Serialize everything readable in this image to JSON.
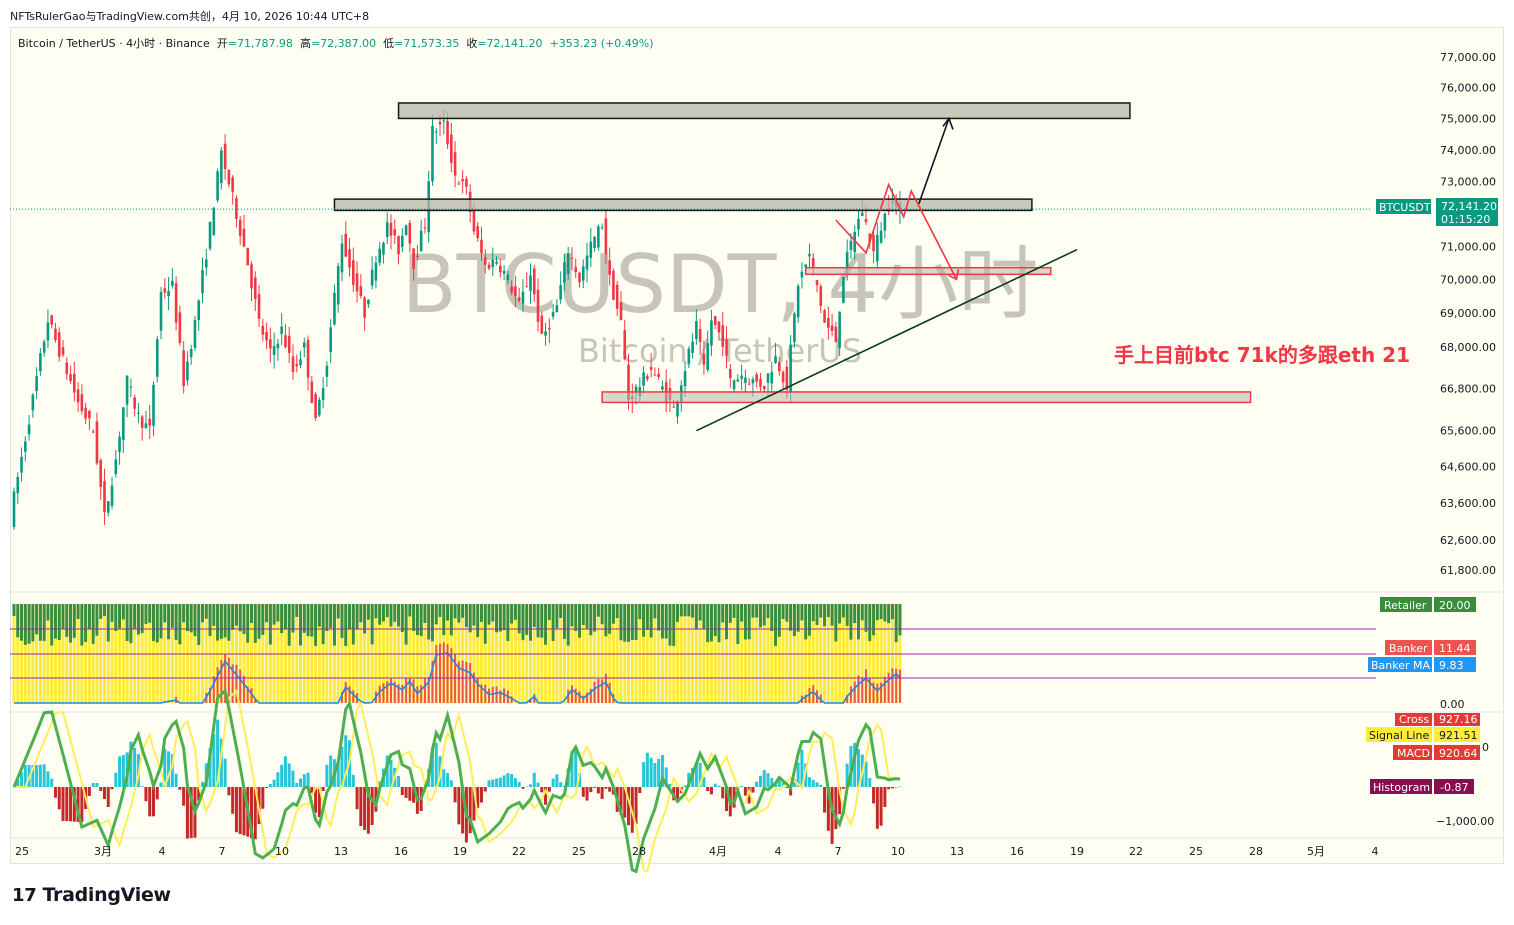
{
  "meta": {
    "publish_line": "NFTsRulerGao与TradingView.com共创，4月 10, 2026 10:44 UTC+8"
  },
  "legend": {
    "symbol": "Bitcoin / TetherUS · 4小时 · Binance",
    "open_label": "开",
    "open": "=71,787.98",
    "high_label": "高",
    "high": "=72,387.00",
    "low_label": "低",
    "low": "=71,573.35",
    "close_label": "收",
    "close": "=72,141.20",
    "change": "+353.23 (+0.49%)"
  },
  "watermark": {
    "title": "BTCUSDT, 4小时",
    "subtitle": "Bitcoin / TetherUS"
  },
  "annotation": "手上目前btc 71k的多跟eth 21",
  "colors": {
    "up": "#089981",
    "down": "#f23645",
    "accent": "#f23645",
    "grid": "#fffef3",
    "zone": "#c8c8b8"
  },
  "price_axis": {
    "ticks": [
      "77,000.00",
      "76,000.00",
      "75,000.00",
      "74,000.00",
      "73,000.00",
      "71,000.00",
      "70,000.00",
      "69,000.00",
      "68,000.00",
      "66,800.00",
      "65,600.00",
      "64,600.00",
      "63,600.00",
      "62,600.00",
      "61,800.00"
    ],
    "tick_values": [
      77000,
      76000,
      75000,
      74000,
      73000,
      71000,
      70000,
      69000,
      68000,
      66800,
      65600,
      64600,
      63600,
      62600,
      61800
    ],
    "last_symbol": "BTCUSDT",
    "last_price": "72,141.20",
    "countdown": "01:15:20"
  },
  "time_axis": {
    "labels": [
      "25",
      "3月",
      "4",
      "7",
      "10",
      "13",
      "16",
      "19",
      "22",
      "25",
      "28",
      "4月",
      "4",
      "7",
      "10",
      "13",
      "16",
      "19",
      "22",
      "25",
      "28",
      "5月",
      "4"
    ]
  },
  "indicator1": {
    "retailer_label": "Retailer",
    "retailer_value": "20.00",
    "banker_label": "Banker",
    "banker_value": "11.44",
    "banker_ma_label": "Banker MA",
    "banker_ma_value": "9.83",
    "zero": "0.00"
  },
  "indicator2": {
    "cross_label": "Cross",
    "cross_value": "927.16",
    "signal_label": "Signal Line",
    "signal_value": "921.51",
    "macd_label": "MACD",
    "macd_value": "920.64",
    "hist_label": "Histogram",
    "hist_value": "-0.87",
    "neg_tick": "−1,000.00",
    "partial_tick": "0"
  },
  "chart_data": {
    "type": "candlestick",
    "title": "BTCUSDT, 4小时",
    "ylim": [
      61400,
      77400
    ],
    "y_scale": "log",
    "price_path": [
      [
        0,
        63200
      ],
      [
        6,
        66500
      ],
      [
        10,
        68800
      ],
      [
        14,
        67600
      ],
      [
        18,
        66400
      ],
      [
        22,
        65600
      ],
      [
        25,
        63200
      ],
      [
        28,
        64800
      ],
      [
        31,
        67000
      ],
      [
        34,
        66000
      ],
      [
        37,
        65600
      ],
      [
        40,
        69600
      ],
      [
        43,
        69800
      ],
      [
        46,
        67000
      ],
      [
        49,
        68700
      ],
      [
        52,
        70800
      ],
      [
        56,
        73900
      ],
      [
        60,
        72000
      ],
      [
        63,
        70500
      ],
      [
        66,
        68700
      ],
      [
        69,
        67800
      ],
      [
        72,
        68500
      ],
      [
        75,
        67300
      ],
      [
        78,
        68000
      ],
      [
        81,
        65800
      ],
      [
        84,
        67600
      ],
      [
        86,
        69500
      ],
      [
        88,
        71200
      ],
      [
        91,
        70000
      ],
      [
        94,
        69000
      ],
      [
        97,
        70700
      ],
      [
        100,
        71600
      ],
      [
        103,
        70900
      ],
      [
        105,
        71800
      ],
      [
        107,
        70500
      ],
      [
        110,
        71700
      ],
      [
        112,
        74600
      ],
      [
        115,
        74800
      ],
      [
        118,
        73200
      ],
      [
        121,
        72700
      ],
      [
        123,
        71500
      ],
      [
        126,
        70400
      ],
      [
        129,
        70600
      ],
      [
        132,
        70000
      ],
      [
        135,
        69200
      ],
      [
        138,
        70200
      ],
      [
        141,
        68200
      ],
      [
        145,
        69200
      ],
      [
        148,
        70900
      ],
      [
        151,
        70000
      ],
      [
        154,
        71000
      ],
      [
        157,
        71700
      ],
      [
        159,
        70000
      ],
      [
        162,
        68700
      ],
      [
        164,
        66500
      ],
      [
        167,
        66900
      ],
      [
        170,
        67400
      ],
      [
        173,
        66800
      ],
      [
        176,
        66200
      ],
      [
        179,
        67400
      ],
      [
        182,
        68600
      ],
      [
        184,
        67300
      ],
      [
        186,
        68800
      ],
      [
        189,
        68200
      ],
      [
        191,
        67000
      ],
      [
        194,
        67200
      ],
      [
        197,
        67000
      ],
      [
        200,
        66900
      ],
      [
        203,
        67700
      ],
      [
        206,
        66900
      ],
      [
        209,
        69900
      ],
      [
        212,
        70700
      ],
      [
        214,
        69800
      ],
      [
        216,
        68700
      ],
      [
        219,
        68200
      ],
      [
        221,
        70200
      ],
      [
        224,
        71500
      ],
      [
        226,
        72100
      ],
      [
        229,
        70800
      ],
      [
        231,
        71600
      ],
      [
        234,
        72600
      ],
      [
        235,
        72141
      ]
    ],
    "zones": [
      {
        "from_bar": 102,
        "to_bar": 296,
        "low": 75000,
        "high": 75500
      },
      {
        "from_bar": 85,
        "to_bar": 270,
        "low": 72100,
        "high": 72450
      },
      {
        "from_bar": 210,
        "to_bar": 275,
        "low": 70150,
        "high": 70350,
        "color": "#f23645"
      },
      {
        "from_bar": 156,
        "to_bar": 328,
        "low": 66400,
        "high": 66700,
        "color": "#f23645"
      }
    ],
    "trendline": {
      "from": [
        181,
        65600
      ],
      "to": [
        282,
        70900
      ]
    },
    "projection_black": [
      [
        240,
        72300
      ],
      [
        248,
        75000
      ]
    ],
    "projection_red": [
      [
        218,
        71800
      ],
      [
        226,
        70800
      ],
      [
        232,
        72900
      ],
      [
        236,
        71900
      ],
      [
        238,
        72700
      ],
      [
        250,
        70000
      ]
    ],
    "last_price": 72141.2
  }
}
